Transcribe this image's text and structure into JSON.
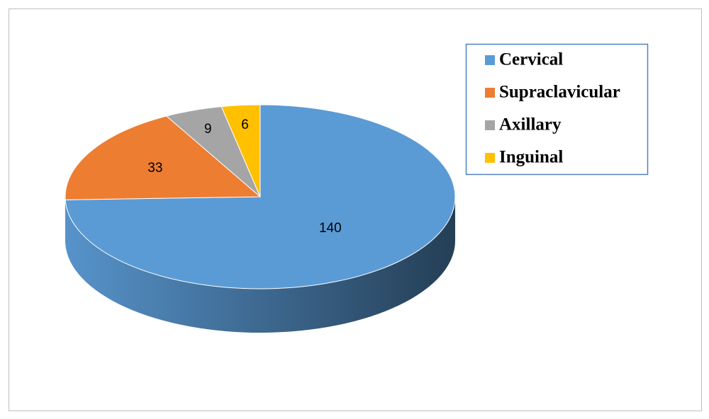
{
  "chart_data": {
    "type": "pie",
    "categories": [
      "Cervical",
      "Supraclavicular",
      "Axillary",
      "Inguinal"
    ],
    "values": [
      140,
      33,
      9,
      6
    ],
    "colors": [
      "#5b9bd5",
      "#ed7d31",
      "#a5a5a5",
      "#ffc000"
    ],
    "legend": "right"
  }
}
